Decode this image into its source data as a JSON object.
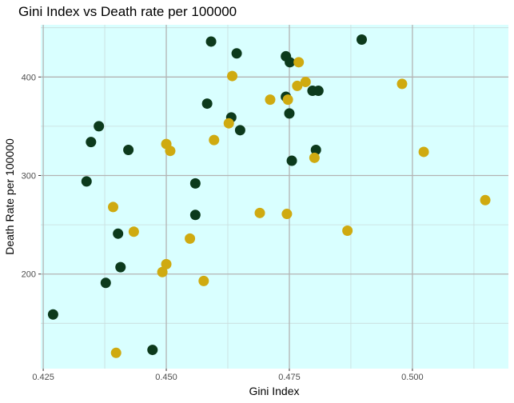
{
  "chart_data": {
    "type": "scatter",
    "title": "Gini Index vs Death rate per 100000",
    "xlabel": "Gini Index",
    "ylabel": "Death Rate per 100000",
    "xlim": [
      0.4245,
      0.5195
    ],
    "ylim": [
      104,
      453
    ],
    "x_ticks": [
      0.425,
      0.45,
      0.475,
      0.5
    ],
    "x_tick_labels": [
      "0.425",
      "0.450",
      "0.475",
      "0.500"
    ],
    "y_ticks": [
      200,
      300,
      400
    ],
    "y_tick_labels": [
      "200",
      "300",
      "400"
    ],
    "grid": true,
    "legend": "none",
    "colors": {
      "panel_background": "#d9ffff",
      "grid_major": "#b3b3b3",
      "grid_minor": "#c9dcdc",
      "series_dark": "#0c3a1c",
      "series_gold": "#cfaa10"
    },
    "series": [
      {
        "color": "#0c3a1c",
        "points": [
          {
            "x": 0.427,
            "y": 159
          },
          {
            "x": 0.4338,
            "y": 294
          },
          {
            "x": 0.4347,
            "y": 334
          },
          {
            "x": 0.4363,
            "y": 350
          },
          {
            "x": 0.4377,
            "y": 191
          },
          {
            "x": 0.4402,
            "y": 241
          },
          {
            "x": 0.4407,
            "y": 207
          },
          {
            "x": 0.4423,
            "y": 326
          },
          {
            "x": 0.4472,
            "y": 123
          },
          {
            "x": 0.4559,
            "y": 292
          },
          {
            "x": 0.4559,
            "y": 260
          },
          {
            "x": 0.4583,
            "y": 373
          },
          {
            "x": 0.4591,
            "y": 436
          },
          {
            "x": 0.4643,
            "y": 424
          },
          {
            "x": 0.4632,
            "y": 359
          },
          {
            "x": 0.465,
            "y": 346
          },
          {
            "x": 0.4743,
            "y": 421
          },
          {
            "x": 0.4751,
            "y": 415
          },
          {
            "x": 0.4743,
            "y": 380
          },
          {
            "x": 0.475,
            "y": 363
          },
          {
            "x": 0.4755,
            "y": 315
          },
          {
            "x": 0.4797,
            "y": 386
          },
          {
            "x": 0.4809,
            "y": 386
          },
          {
            "x": 0.4804,
            "y": 326
          },
          {
            "x": 0.4897,
            "y": 438
          }
        ]
      },
      {
        "color": "#cfaa10",
        "points": [
          {
            "x": 0.4392,
            "y": 268
          },
          {
            "x": 0.4398,
            "y": 120
          },
          {
            "x": 0.4434,
            "y": 243
          },
          {
            "x": 0.4492,
            "y": 202
          },
          {
            "x": 0.45,
            "y": 210
          },
          {
            "x": 0.45,
            "y": 332
          },
          {
            "x": 0.4508,
            "y": 325
          },
          {
            "x": 0.4548,
            "y": 236
          },
          {
            "x": 0.4576,
            "y": 193
          },
          {
            "x": 0.4597,
            "y": 336
          },
          {
            "x": 0.4627,
            "y": 353
          },
          {
            "x": 0.4634,
            "y": 401
          },
          {
            "x": 0.469,
            "y": 262
          },
          {
            "x": 0.4711,
            "y": 377
          },
          {
            "x": 0.4745,
            "y": 261
          },
          {
            "x": 0.4747,
            "y": 377
          },
          {
            "x": 0.4766,
            "y": 391
          },
          {
            "x": 0.4769,
            "y": 415
          },
          {
            "x": 0.4783,
            "y": 395
          },
          {
            "x": 0.4801,
            "y": 318
          },
          {
            "x": 0.4868,
            "y": 244
          },
          {
            "x": 0.4979,
            "y": 393
          },
          {
            "x": 0.5023,
            "y": 324
          },
          {
            "x": 0.5148,
            "y": 275
          }
        ]
      }
    ]
  }
}
